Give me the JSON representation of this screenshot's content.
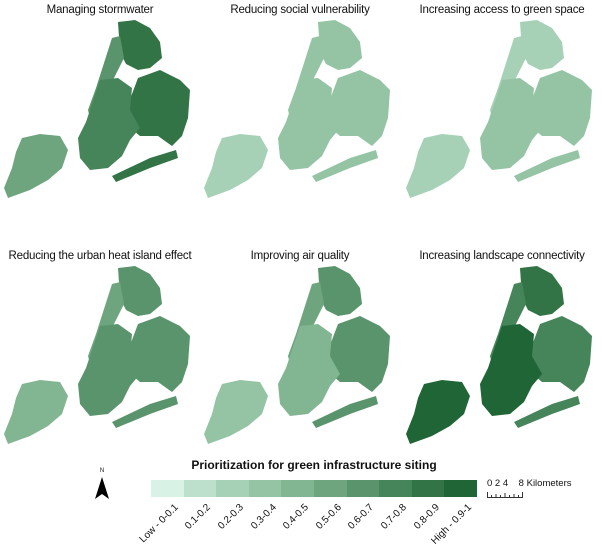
{
  "panels": [
    {
      "title": "Managing stormwater",
      "intensity": [
        8,
        6,
        8,
        7,
        5
      ]
    },
    {
      "title": "Reducing social vulnerability",
      "intensity": [
        3,
        3,
        3,
        3,
        2
      ]
    },
    {
      "title": "Increasing access to green space",
      "intensity": [
        2,
        2,
        3,
        3,
        2
      ]
    },
    {
      "title": "Reducing the urban heat island effect",
      "intensity": [
        6,
        5,
        6,
        6,
        4
      ]
    },
    {
      "title": "Improving air quality",
      "intensity": [
        6,
        5,
        6,
        4,
        3
      ]
    },
    {
      "title": "Increasing landscape connectivity",
      "intensity": [
        8,
        7,
        7,
        9,
        9
      ]
    }
  ],
  "legend": {
    "title": "Prioritization for green infrastructure siting",
    "classes": [
      {
        "label": "Low - 0-0.1",
        "color": "#d9f2e6"
      },
      {
        "label": "0.1-0.2",
        "color": "#bde0cd"
      },
      {
        "label": "0.2-0.3",
        "color": "#a6d1b7"
      },
      {
        "label": "0.3-0.4",
        "color": "#95c4a5"
      },
      {
        "label": "0.4-0.5",
        "color": "#82b592"
      },
      {
        "label": "0.5-0.6",
        "color": "#6ea57f"
      },
      {
        "label": "0.6-0.7",
        "color": "#5a946c"
      },
      {
        "label": "0.7-0.8",
        "color": "#468459"
      },
      {
        "label": "0.8-0.9",
        "color": "#337447"
      },
      {
        "label": "High - 0.9-1",
        "color": "#206536"
      }
    ]
  },
  "north_arrow": {
    "label": "N"
  },
  "scale_bar": {
    "ticks": "0 2 4    8 Kilometers"
  }
}
